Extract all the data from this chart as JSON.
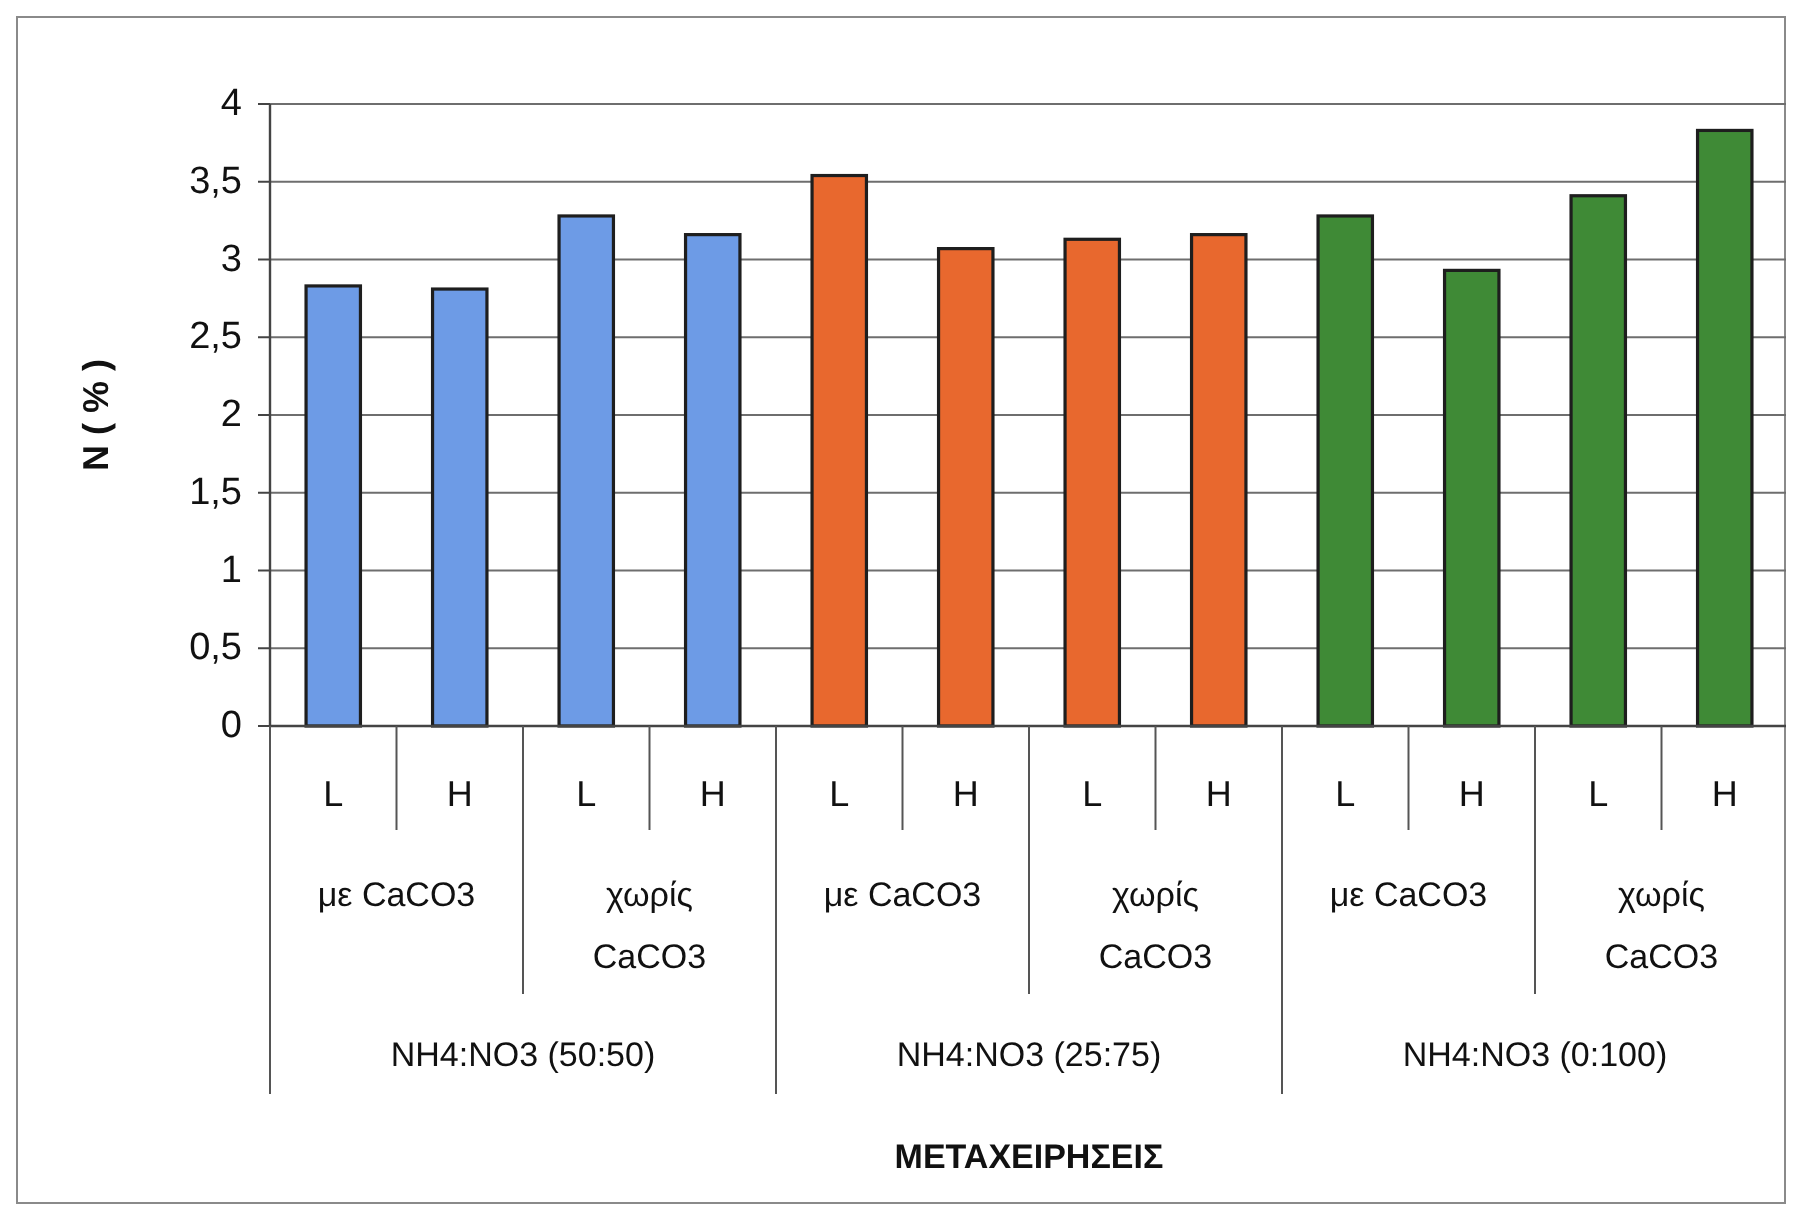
{
  "chart_data": {
    "type": "bar",
    "ylabel": "N ( % )",
    "categories": [
      "L",
      "H",
      "L",
      "H",
      "L",
      "H",
      "L",
      "H",
      "L",
      "H",
      "L",
      "H"
    ],
    "values": [
      2.83,
      2.81,
      3.28,
      3.16,
      3.54,
      3.07,
      3.13,
      3.16,
      3.28,
      2.93,
      3.41,
      3.83
    ],
    "colors": [
      "#6d9be6",
      "#6d9be6",
      "#6d9be6",
      "#6d9be6",
      "#e8682e",
      "#e8682e",
      "#e8682e",
      "#e8682e",
      "#3f8a36",
      "#3f8a36",
      "#3f8a36",
      "#3f8a36"
    ],
    "ylim": [
      0,
      4
    ],
    "yticks": [
      0,
      {
        "value": 0.5,
        "label": "0,5"
      },
      1,
      {
        "value": 1.5,
        "label": "1,5"
      },
      2,
      {
        "value": 2.5,
        "label": "2,5"
      },
      3,
      {
        "value": 3.5,
        "label": "3,5"
      },
      4
    ],
    "grid": "y",
    "annotations": [
      "με CaCO3",
      "χωρίς CaCO3",
      "με CaCO3",
      "χωρίς CaCO3",
      "με CaCO3",
      "χωρίς CaCO3",
      "NH4:NO3 (50:50)",
      "NH4:NO3 (25:75)",
      "NH4:NO3 (0:100)",
      "ΜΕΤΑΧΕΙΡΗΣΕΙΣ"
    ]
  }
}
